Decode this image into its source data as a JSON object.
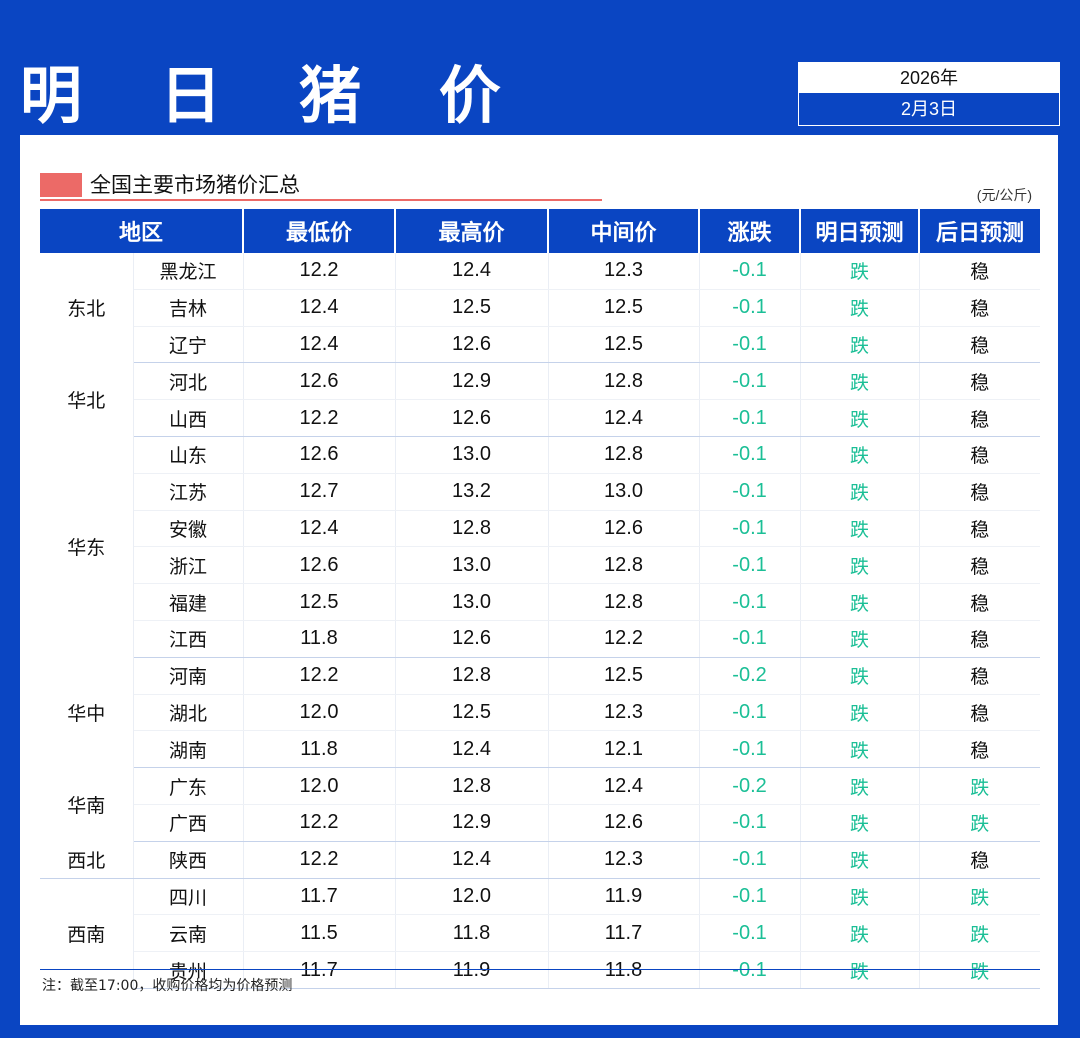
{
  "header": {
    "title": "明 日 猪 价",
    "year": "2026年",
    "date": "2月3日"
  },
  "section": {
    "title": "全国主要市场猪价汇总",
    "unit": "(元/公斤)"
  },
  "table": {
    "columns": [
      "地区",
      "最低价",
      "最高价",
      "中间价",
      "涨跌",
      "明日预测",
      "后日预测"
    ],
    "groups": [
      {
        "region": "东北",
        "rows": [
          {
            "province": "黑龙江",
            "low": "12.2",
            "high": "12.4",
            "mid": "12.3",
            "change": "-0.1",
            "tomorrow": "跌",
            "after": "稳"
          },
          {
            "province": "吉林",
            "low": "12.4",
            "high": "12.5",
            "mid": "12.5",
            "change": "-0.1",
            "tomorrow": "跌",
            "after": "稳"
          },
          {
            "province": "辽宁",
            "low": "12.4",
            "high": "12.6",
            "mid": "12.5",
            "change": "-0.1",
            "tomorrow": "跌",
            "after": "稳"
          }
        ]
      },
      {
        "region": "华北",
        "rows": [
          {
            "province": "河北",
            "low": "12.6",
            "high": "12.9",
            "mid": "12.8",
            "change": "-0.1",
            "tomorrow": "跌",
            "after": "稳"
          },
          {
            "province": "山西",
            "low": "12.2",
            "high": "12.6",
            "mid": "12.4",
            "change": "-0.1",
            "tomorrow": "跌",
            "after": "稳"
          }
        ]
      },
      {
        "region": "华东",
        "rows": [
          {
            "province": "山东",
            "low": "12.6",
            "high": "13.0",
            "mid": "12.8",
            "change": "-0.1",
            "tomorrow": "跌",
            "after": "稳"
          },
          {
            "province": "江苏",
            "low": "12.7",
            "high": "13.2",
            "mid": "13.0",
            "change": "-0.1",
            "tomorrow": "跌",
            "after": "稳"
          },
          {
            "province": "安徽",
            "low": "12.4",
            "high": "12.8",
            "mid": "12.6",
            "change": "-0.1",
            "tomorrow": "跌",
            "after": "稳"
          },
          {
            "province": "浙江",
            "low": "12.6",
            "high": "13.0",
            "mid": "12.8",
            "change": "-0.1",
            "tomorrow": "跌",
            "after": "稳"
          },
          {
            "province": "福建",
            "low": "12.5",
            "high": "13.0",
            "mid": "12.8",
            "change": "-0.1",
            "tomorrow": "跌",
            "after": "稳"
          },
          {
            "province": "江西",
            "low": "11.8",
            "high": "12.6",
            "mid": "12.2",
            "change": "-0.1",
            "tomorrow": "跌",
            "after": "稳"
          }
        ]
      },
      {
        "region": "华中",
        "rows": [
          {
            "province": "河南",
            "low": "12.2",
            "high": "12.8",
            "mid": "12.5",
            "change": "-0.2",
            "tomorrow": "跌",
            "after": "稳"
          },
          {
            "province": "湖北",
            "low": "12.0",
            "high": "12.5",
            "mid": "12.3",
            "change": "-0.1",
            "tomorrow": "跌",
            "after": "稳"
          },
          {
            "province": "湖南",
            "low": "11.8",
            "high": "12.4",
            "mid": "12.1",
            "change": "-0.1",
            "tomorrow": "跌",
            "after": "稳"
          }
        ]
      },
      {
        "region": "华南",
        "rows": [
          {
            "province": "广东",
            "low": "12.0",
            "high": "12.8",
            "mid": "12.4",
            "change": "-0.2",
            "tomorrow": "跌",
            "after": "跌"
          },
          {
            "province": "广西",
            "low": "12.2",
            "high": "12.9",
            "mid": "12.6",
            "change": "-0.1",
            "tomorrow": "跌",
            "after": "跌"
          }
        ]
      },
      {
        "region": "西北",
        "rows": [
          {
            "province": "陕西",
            "low": "12.2",
            "high": "12.4",
            "mid": "12.3",
            "change": "-0.1",
            "tomorrow": "跌",
            "after": "稳"
          }
        ]
      },
      {
        "region": "西南",
        "rows": [
          {
            "province": "四川",
            "low": "11.7",
            "high": "12.0",
            "mid": "11.9",
            "change": "-0.1",
            "tomorrow": "跌",
            "after": "跌"
          },
          {
            "province": "云南",
            "low": "11.5",
            "high": "11.8",
            "mid": "11.7",
            "change": "-0.1",
            "tomorrow": "跌",
            "after": "跌"
          },
          {
            "province": "贵州",
            "low": "11.7",
            "high": "11.9",
            "mid": "11.8",
            "change": "-0.1",
            "tomorrow": "跌",
            "after": "跌"
          }
        ]
      }
    ]
  },
  "note": "注：截至17:00，收购价格均为价格预测",
  "colors": {
    "brand_blue": "#0a45c2",
    "fall_green": "#1bbf96",
    "accent_red": "#ec6a67"
  }
}
